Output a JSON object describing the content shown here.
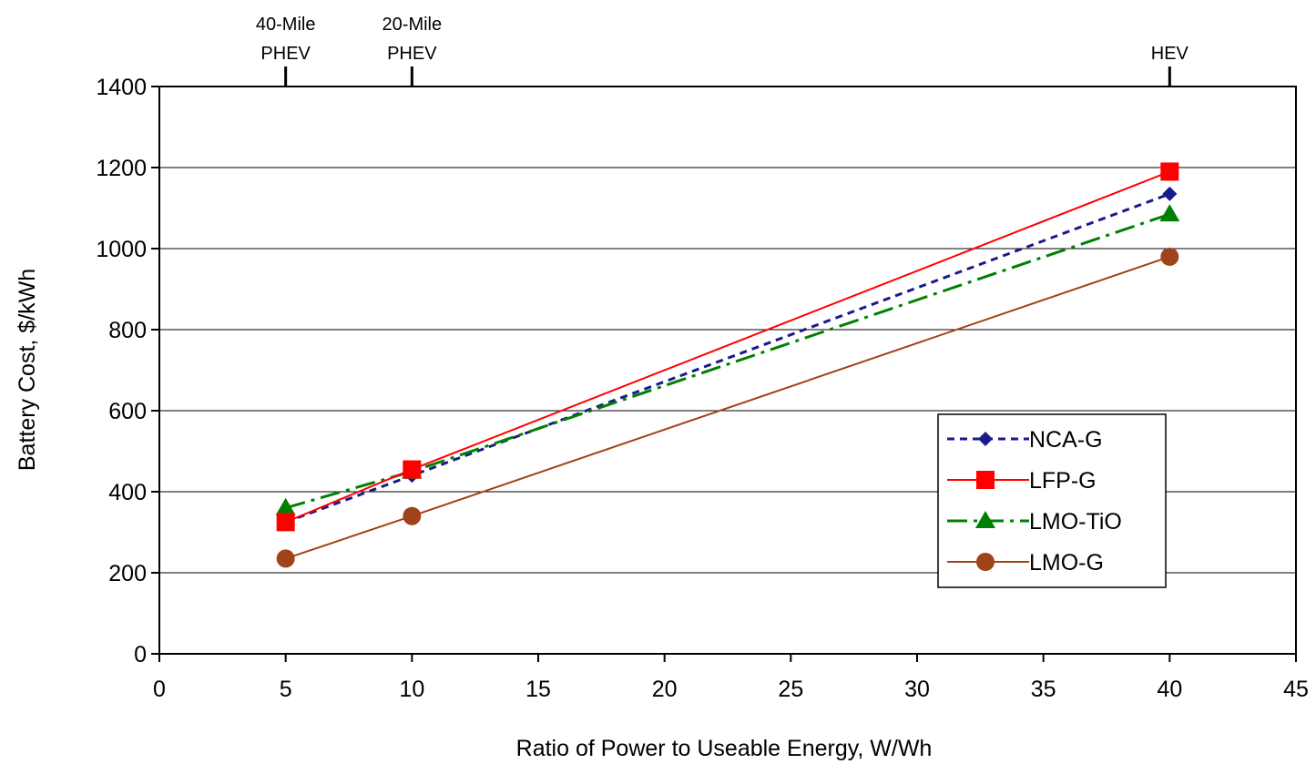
{
  "chart_data": {
    "type": "line",
    "title": "",
    "xlabel": "Ratio of Power to Useable Energy, W/Wh",
    "ylabel": "Battery Cost, $/kWh",
    "xlim": [
      0,
      45
    ],
    "ylim": [
      0,
      1400
    ],
    "xticks": [
      0,
      5,
      10,
      15,
      20,
      25,
      30,
      35,
      40,
      45
    ],
    "yticks": [
      0,
      200,
      400,
      600,
      800,
      1000,
      1200,
      1400
    ],
    "grid": "horizontal",
    "legend_position": "right",
    "top_annotations": [
      {
        "x": 5,
        "lines": [
          "40-Mile",
          "PHEV"
        ]
      },
      {
        "x": 10,
        "lines": [
          "20-Mile",
          "PHEV"
        ]
      },
      {
        "x": 40,
        "lines": [
          "HEV"
        ]
      }
    ],
    "series": [
      {
        "name": "NCA-G",
        "x": [
          5,
          10,
          40
        ],
        "values": [
          325,
          440,
          1135
        ],
        "color": "#1a1a8c",
        "marker": "diamond",
        "dash": "dotted"
      },
      {
        "name": "LFP-G",
        "x": [
          5,
          10,
          40
        ],
        "values": [
          325,
          455,
          1190
        ],
        "color": "#ff0000",
        "marker": "square",
        "dash": "solid"
      },
      {
        "name": "LMO-TiO",
        "x": [
          5,
          10,
          40
        ],
        "values": [
          360,
          450,
          1085
        ],
        "color": "#008000",
        "marker": "triangle",
        "dash": "dashdot"
      },
      {
        "name": "LMO-G",
        "x": [
          5,
          10,
          40
        ],
        "values": [
          235,
          340,
          980
        ],
        "color": "#a0431a",
        "marker": "circle",
        "dash": "solid"
      }
    ]
  }
}
